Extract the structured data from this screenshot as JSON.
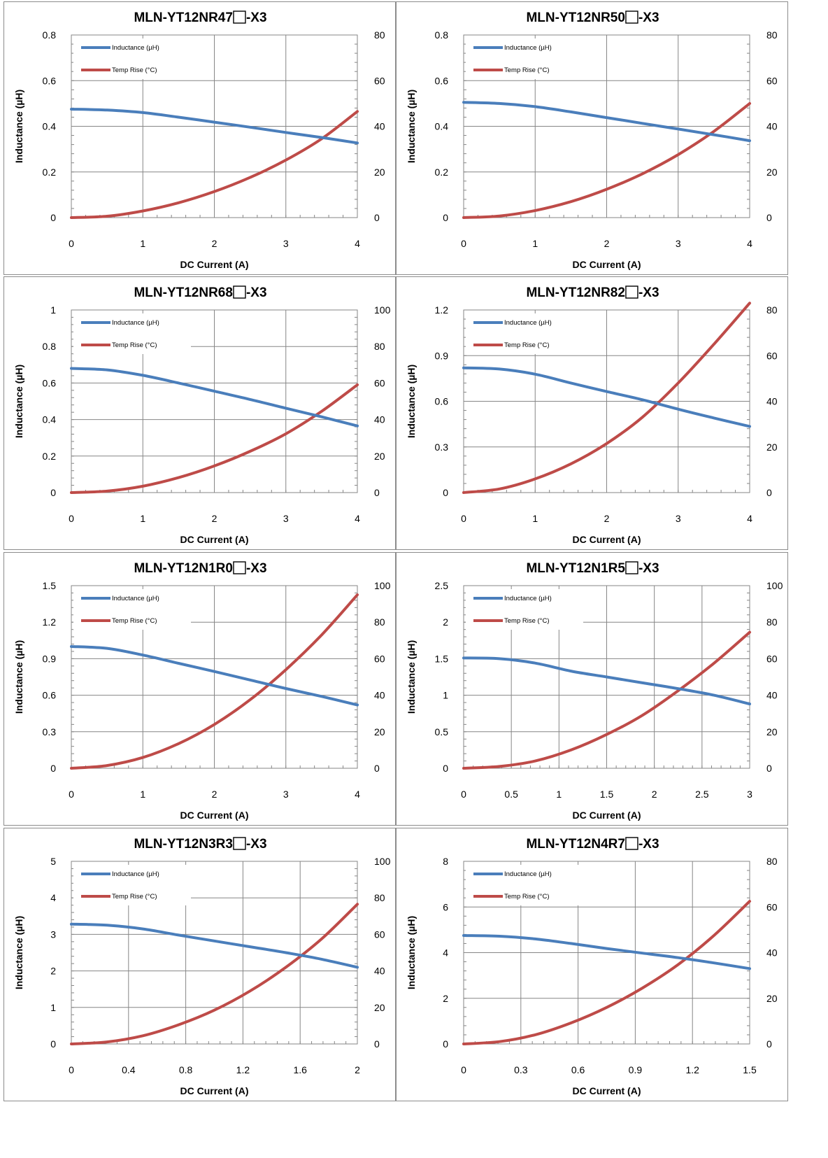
{
  "colors": {
    "inductance": "#4a7ebb",
    "temp_rise": "#be4b48",
    "grid": "#868686",
    "border": "#8c8c8c"
  },
  "chart_data": [
    {
      "type": "line",
      "title_before_box": "MLN-YT12NR47",
      "title_after_box": "-X3",
      "xlabel": "DC Current (A)",
      "ylabel": "Inductance (µH)",
      "y2label": "",
      "xlim": [
        0,
        4
      ],
      "ylim": [
        0,
        0.8
      ],
      "y2lim": [
        0,
        80
      ],
      "xticks": [
        "0",
        "1",
        "2",
        "3",
        "4"
      ],
      "yticks": [
        "0",
        "0.2",
        "0.4",
        "0.6",
        "0.8"
      ],
      "y2ticks": [
        "0",
        "20",
        "40",
        "60",
        "80"
      ],
      "grid": true,
      "legend_position": "top-left",
      "series": [
        {
          "name": "Inductance (µH)",
          "axis": "left",
          "x": [
            0,
            0.5,
            1,
            1.5,
            2,
            2.5,
            3,
            3.5,
            4
          ],
          "y": [
            0.475,
            0.471,
            0.46,
            0.44,
            0.418,
            0.396,
            0.373,
            0.351,
            0.327
          ]
        },
        {
          "name": "Temp Rise (°C)",
          "axis": "right",
          "x": [
            0,
            0.5,
            1,
            1.5,
            2,
            2.5,
            3,
            3.5,
            4
          ],
          "y": [
            0,
            0.6,
            2.9,
            6.5,
            11.4,
            17.6,
            25.2,
            34.5,
            46.5
          ]
        }
      ]
    },
    {
      "type": "line",
      "title_before_box": "MLN-YT12NR50",
      "title_after_box": "-X3",
      "xlabel": "DC Current (A)",
      "ylabel": "Inductance (µH)",
      "y2label": "",
      "xlim": [
        0,
        4
      ],
      "ylim": [
        0,
        0.8
      ],
      "y2lim": [
        0,
        80
      ],
      "xticks": [
        "0",
        "1",
        "2",
        "3",
        "4"
      ],
      "yticks": [
        "0",
        "0.2",
        "0.4",
        "0.6",
        "0.8"
      ],
      "y2ticks": [
        "0",
        "20",
        "40",
        "60",
        "80"
      ],
      "grid": true,
      "legend_position": "top-left",
      "series": [
        {
          "name": "Inductance (µH)",
          "axis": "left",
          "x": [
            0,
            0.5,
            1,
            1.5,
            2,
            2.5,
            3,
            3.5,
            4
          ],
          "y": [
            0.505,
            0.5,
            0.486,
            0.463,
            0.438,
            0.413,
            0.388,
            0.363,
            0.337
          ]
        },
        {
          "name": "Temp Rise (°C)",
          "axis": "right",
          "x": [
            0,
            0.5,
            1,
            1.5,
            2,
            2.5,
            3,
            3.5,
            4
          ],
          "y": [
            0,
            0.7,
            3.1,
            7.0,
            12.4,
            19.2,
            27.6,
            37.8,
            50.0
          ]
        }
      ]
    },
    {
      "type": "line",
      "title_before_box": "MLN-YT12NR68",
      "title_after_box": "-X3",
      "xlabel": "DC Current (A)",
      "ylabel": "Inductance (µH)",
      "y2label": "",
      "xlim": [
        0,
        4
      ],
      "ylim": [
        0,
        1
      ],
      "y2lim": [
        0,
        100
      ],
      "xticks": [
        "0",
        "1",
        "2",
        "3",
        "4"
      ],
      "yticks": [
        "0",
        "0.2",
        "0.4",
        "0.6",
        "0.8",
        "1"
      ],
      "y2ticks": [
        "0",
        "20",
        "40",
        "60",
        "80",
        "100"
      ],
      "grid": true,
      "legend_position": "top-left",
      "series": [
        {
          "name": "Inductance (µH)",
          "axis": "left",
          "x": [
            0,
            0.5,
            1,
            1.5,
            2,
            2.5,
            3,
            3.5,
            4
          ],
          "y": [
            0.68,
            0.672,
            0.642,
            0.6,
            0.555,
            0.51,
            0.462,
            0.415,
            0.365
          ]
        },
        {
          "name": "Temp Rise (°C)",
          "axis": "right",
          "x": [
            0,
            0.5,
            1,
            1.5,
            2,
            2.5,
            3,
            3.5,
            4
          ],
          "y": [
            0,
            0.8,
            3.5,
            8.2,
            14.6,
            22.6,
            32.2,
            44.5,
            59.0
          ]
        }
      ]
    },
    {
      "type": "line",
      "title_before_box": "MLN-YT12NR82",
      "title_after_box": "-X3",
      "xlabel": "DC Current (A)",
      "ylabel": "Inductance (µH)",
      "y2label": "",
      "xlim": [
        0,
        4
      ],
      "ylim": [
        0,
        1.2
      ],
      "y2lim": [
        0,
        80
      ],
      "xticks": [
        "0",
        "1",
        "2",
        "3",
        "4"
      ],
      "yticks": [
        "0",
        "0.3",
        "0.6",
        "0.9",
        "1.2"
      ],
      "y2ticks": [
        "0",
        "20",
        "40",
        "60",
        "80"
      ],
      "grid": true,
      "legend_position": "top-left",
      "series": [
        {
          "name": "Inductance (µH)",
          "axis": "left",
          "x": [
            0,
            0.5,
            1,
            1.5,
            2,
            2.5,
            3,
            3.5,
            4
          ],
          "y": [
            0.82,
            0.812,
            0.778,
            0.72,
            0.664,
            0.61,
            0.548,
            0.49,
            0.435
          ]
        },
        {
          "name": "Temp Rise (°C)",
          "axis": "right",
          "x": [
            0,
            0.5,
            1,
            1.5,
            2,
            2.5,
            3,
            3.5,
            4
          ],
          "y": [
            0,
            1.6,
            6.0,
            12.6,
            21.5,
            33.0,
            48.0,
            65.0,
            83.0
          ]
        }
      ]
    },
    {
      "type": "line",
      "title_before_box": "MLN-YT12N1R0",
      "title_after_box": "-X3",
      "xlabel": "DC Current (A)",
      "ylabel": "Inductance (µH)",
      "y2label": "",
      "xlim": [
        0,
        4
      ],
      "ylim": [
        0,
        1.5
      ],
      "y2lim": [
        0,
        100
      ],
      "xticks": [
        "0",
        "1",
        "2",
        "3",
        "4"
      ],
      "yticks": [
        "0",
        "0.3",
        "0.6",
        "0.9",
        "1.2",
        "1.5"
      ],
      "y2ticks": [
        "0",
        "20",
        "40",
        "60",
        "80",
        "100"
      ],
      "grid": true,
      "legend_position": "top-left",
      "series": [
        {
          "name": "Inductance (µH)",
          "axis": "left",
          "x": [
            0,
            0.5,
            1,
            1.5,
            2,
            2.5,
            3,
            3.5,
            4
          ],
          "y": [
            1.0,
            0.985,
            0.93,
            0.862,
            0.795,
            0.725,
            0.655,
            0.59,
            0.52
          ]
        },
        {
          "name": "Temp Rise (°C)",
          "axis": "right",
          "x": [
            0,
            0.5,
            1,
            1.5,
            2,
            2.5,
            3,
            3.5,
            4
          ],
          "y": [
            0,
            1.5,
            5.9,
            13.5,
            24.0,
            37.5,
            54.0,
            73.0,
            95.0
          ]
        }
      ]
    },
    {
      "type": "line",
      "title_before_box": "MLN-YT12N1R5",
      "title_after_box": "-X3",
      "xlabel": "DC Current (A)",
      "ylabel": "Inductance (µH)",
      "y2label": "",
      "xlim": [
        0,
        3
      ],
      "ylim": [
        0,
        2.5
      ],
      "y2lim": [
        0,
        100
      ],
      "xticks": [
        "0",
        "0.5",
        "1",
        "1.5",
        "2",
        "2.5",
        "3"
      ],
      "yticks": [
        "0",
        "0.5",
        "1",
        "1.5",
        "2",
        "2.5"
      ],
      "y2ticks": [
        "0",
        "20",
        "40",
        "60",
        "80",
        "100"
      ],
      "grid": true,
      "legend_position": "top-left",
      "series": [
        {
          "name": "Inductance (µH)",
          "axis": "left",
          "x": [
            0,
            0.375,
            0.75,
            1.125,
            1.5,
            1.875,
            2.25,
            2.625,
            3
          ],
          "y": [
            1.51,
            1.5,
            1.44,
            1.33,
            1.25,
            1.17,
            1.09,
            1.0,
            0.88
          ]
        },
        {
          "name": "Temp Rise (°C)",
          "axis": "right",
          "x": [
            0,
            0.375,
            0.75,
            1.125,
            1.5,
            1.875,
            2.25,
            2.625,
            3
          ],
          "y": [
            0,
            1.0,
            4.0,
            10.0,
            18.5,
            29.0,
            42.5,
            57.5,
            74.5
          ]
        }
      ]
    },
    {
      "type": "line",
      "title_before_box": "MLN-YT12N3R3",
      "title_after_box": "-X3",
      "xlabel": "DC Current (A)",
      "ylabel": "Inductance (µH)",
      "y2label": "",
      "xlim": [
        0,
        2
      ],
      "ylim": [
        0,
        5
      ],
      "y2lim": [
        0,
        100
      ],
      "xticks": [
        "0",
        "0.4",
        "0.8",
        "1.2",
        "1.6",
        "2"
      ],
      "yticks": [
        "0",
        "1",
        "2",
        "3",
        "4",
        "5"
      ],
      "y2ticks": [
        "0",
        "20",
        "40",
        "60",
        "80",
        "100"
      ],
      "grid": true,
      "legend_position": "top-left",
      "series": [
        {
          "name": "Inductance (µH)",
          "axis": "left",
          "x": [
            0,
            0.25,
            0.5,
            0.75,
            1,
            1.25,
            1.5,
            1.75,
            2
          ],
          "y": [
            3.28,
            3.25,
            3.15,
            2.98,
            2.82,
            2.66,
            2.5,
            2.32,
            2.1
          ]
        },
        {
          "name": "Temp Rise (°C)",
          "axis": "right",
          "x": [
            0,
            0.25,
            0.5,
            0.75,
            1,
            1.25,
            1.5,
            1.75,
            2
          ],
          "y": [
            0,
            1.1,
            4.5,
            10.5,
            18.5,
            29.0,
            42.0,
            57.5,
            76.5
          ]
        }
      ]
    },
    {
      "type": "line",
      "title_before_box": "MLN-YT12N4R7",
      "title_after_box": "-X3",
      "xlabel": "DC Current (A)",
      "ylabel": "Inductance (µH)",
      "y2label": "",
      "xlim": [
        0,
        1.5
      ],
      "ylim": [
        0,
        8
      ],
      "y2lim": [
        0,
        80
      ],
      "xticks": [
        "0",
        "0.3",
        "0.6",
        "0.9",
        "1.2",
        "1.5"
      ],
      "yticks": [
        "0",
        "2",
        "4",
        "6",
        "8"
      ],
      "y2ticks": [
        "0",
        "20",
        "40",
        "60",
        "80"
      ],
      "grid": true,
      "legend_position": "top-left",
      "series": [
        {
          "name": "Inductance (µH)",
          "axis": "left",
          "x": [
            0,
            0.1875,
            0.375,
            0.5625,
            0.75,
            0.9375,
            1.125,
            1.3125,
            1.5
          ],
          "y": [
            4.75,
            4.72,
            4.6,
            4.4,
            4.18,
            3.98,
            3.78,
            3.55,
            3.3
          ]
        },
        {
          "name": "Temp Rise (°C)",
          "axis": "right",
          "x": [
            0,
            0.1875,
            0.375,
            0.5625,
            0.75,
            0.9375,
            1.125,
            1.3125,
            1.5
          ],
          "y": [
            0,
            1.0,
            4.0,
            9.2,
            16.0,
            24.5,
            34.8,
            47.5,
            62.5
          ]
        }
      ]
    }
  ]
}
